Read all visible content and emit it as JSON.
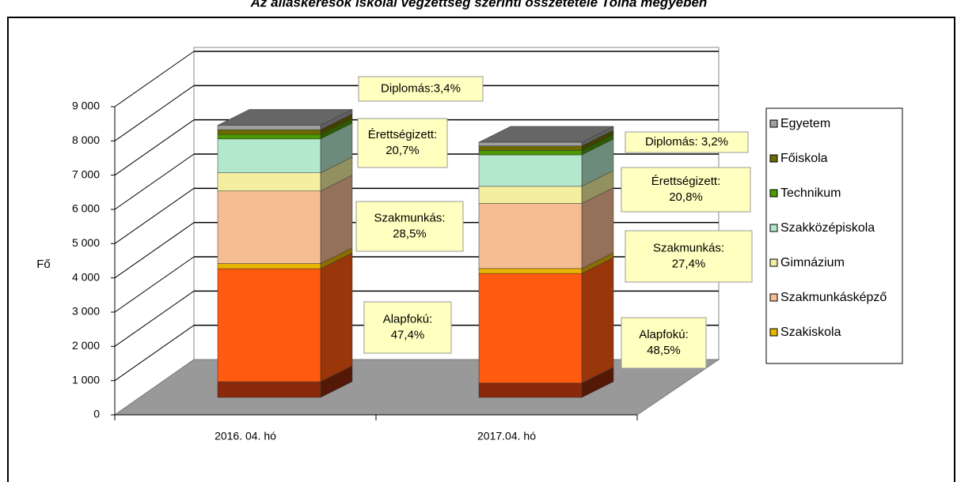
{
  "chart_data": {
    "type": "bar3d_stacked",
    "title": "Az álláskeresők iskolai végzettség szerinti összetétele Tolna megyében",
    "y_label": "Fő",
    "categories": [
      "2016. 04. hó",
      "2017.04. hó"
    ],
    "ylim": [
      0,
      9000
    ],
    "yticks": [
      0,
      {
        "value": 1000,
        "label": "1 000"
      },
      {
        "value": 2000,
        "label": "2 000"
      },
      {
        "value": 3000,
        "label": "3 000"
      },
      {
        "value": 4000,
        "label": "4 000"
      },
      {
        "value": 5000,
        "label": "5 000"
      },
      {
        "value": 6000,
        "label": "6 000"
      },
      {
        "value": 7000,
        "label": "7 000"
      },
      {
        "value": 8000,
        "label": "8 000"
      },
      {
        "value": 9000,
        "label": "9 000"
      }
    ],
    "grid": true,
    "series": [
      {
        "name": null,
        "color": "#8b2a0a",
        "values": [
          460,
          420
        ]
      },
      {
        "name": null,
        "color": "#ff5a10",
        "values": [
          3300,
          3200
        ]
      },
      {
        "name": "Szakiskola",
        "color": "#e8b400",
        "values": [
          150,
          145
        ]
      },
      {
        "name": "Szakmunkásképző",
        "color": "#f6bc92",
        "values": [
          2120,
          1900
        ]
      },
      {
        "name": "Gimnázium",
        "color": "#f4eea0",
        "values": [
          530,
          500
        ]
      },
      {
        "name": "Szakközépiskola",
        "color": "#b4e8cc",
        "values": [
          990,
          920
        ]
      },
      {
        "name": "Technikum",
        "color": "#4a9a00",
        "values": [
          130,
          130
        ]
      },
      {
        "name": "Főiskola",
        "color": "#6a6a00",
        "values": [
          140,
          130
        ]
      },
      {
        "name": "Egyetem",
        "color": "#a0a0a0",
        "values": [
          130,
          110
        ]
      }
    ],
    "annotations": [
      [
        "Diplomás:3,4%"
      ],
      [
        "Érettségizett:",
        "20,7%"
      ],
      [
        "Szakmunkás:",
        "28,5%"
      ],
      [
        "Alapfokú:",
        "47,4%"
      ],
      [
        "Diplomás: 3,2%"
      ],
      [
        "Érettségizett:",
        "20,8%"
      ],
      [
        "Szakmunkás:",
        "27,4%"
      ],
      [
        "Alapfokú:",
        "48,5%"
      ]
    ]
  }
}
